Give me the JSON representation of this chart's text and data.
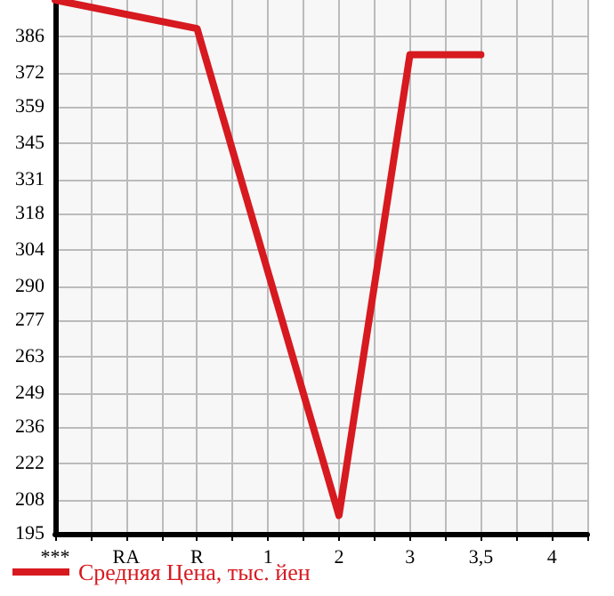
{
  "chart_data": {
    "type": "line",
    "categories": [
      "***",
      "RA",
      "R",
      "1",
      "2",
      "3",
      "3,5",
      "4"
    ],
    "series": [
      {
        "name": "Средняя Цена, тыс. йен",
        "color": "#d71920",
        "values": [
          400,
          null,
          389,
          null,
          202,
          379,
          379,
          null
        ]
      }
    ],
    "ylim": [
      195,
      400
    ],
    "yticks": [
      195,
      208,
      222,
      236,
      249,
      263,
      277,
      290,
      304,
      318,
      331,
      345,
      359,
      372,
      386
    ],
    "grid": true,
    "legend": "bottom",
    "marker": "none",
    "line_style": "solid"
  }
}
